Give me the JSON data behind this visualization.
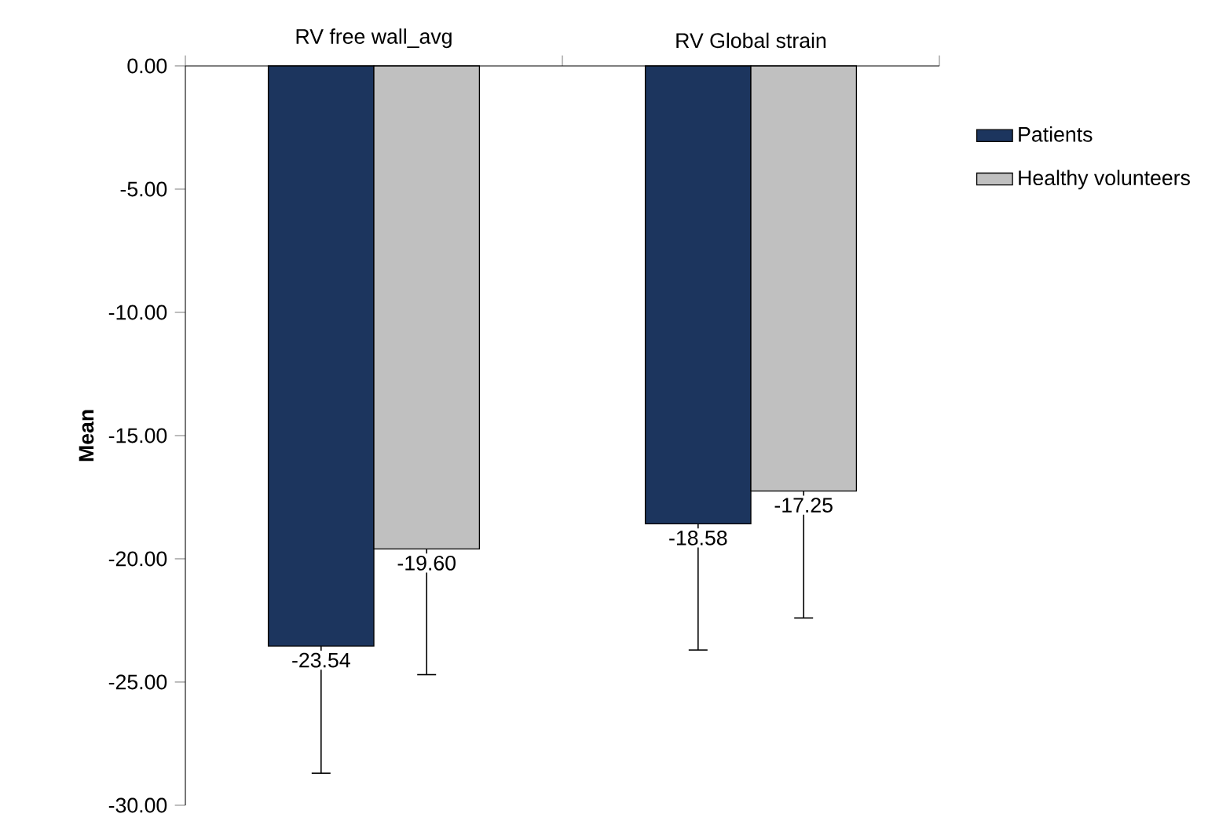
{
  "chart_data": {
    "type": "bar",
    "ylabel": "Mean",
    "categories": [
      "RV free wall_avg",
      "RV Global strain"
    ],
    "series": [
      {
        "name": "Patients",
        "color": "#1c355e",
        "values": [
          -23.54,
          -18.58
        ],
        "value_labels": [
          "-23.54",
          "-18.58"
        ],
        "errors": [
          [
            -28.7,
            -23.54
          ],
          [
            -23.7,
            -18.58
          ]
        ]
      },
      {
        "name": "Healthy volunteers",
        "color": "#c0c0c0",
        "values": [
          -19.6,
          -17.25
        ],
        "value_labels": [
          "-19.60",
          "-17.25"
        ],
        "errors": [
          [
            -24.7,
            -19.6
          ],
          [
            -22.4,
            -17.25
          ]
        ]
      }
    ],
    "ylim": [
      -30,
      0
    ],
    "yticks": [
      {
        "value": -30,
        "label": "-30.00"
      },
      {
        "value": -25,
        "label": "-25.00"
      },
      {
        "value": -20,
        "label": "-20.00"
      },
      {
        "value": -15,
        "label": "-15.00"
      },
      {
        "value": -10,
        "label": "-10.00"
      },
      {
        "value": -5,
        "label": "-5.00"
      },
      {
        "value": 0,
        "label": "0.00"
      }
    ],
    "legend": "right",
    "grid": false
  }
}
